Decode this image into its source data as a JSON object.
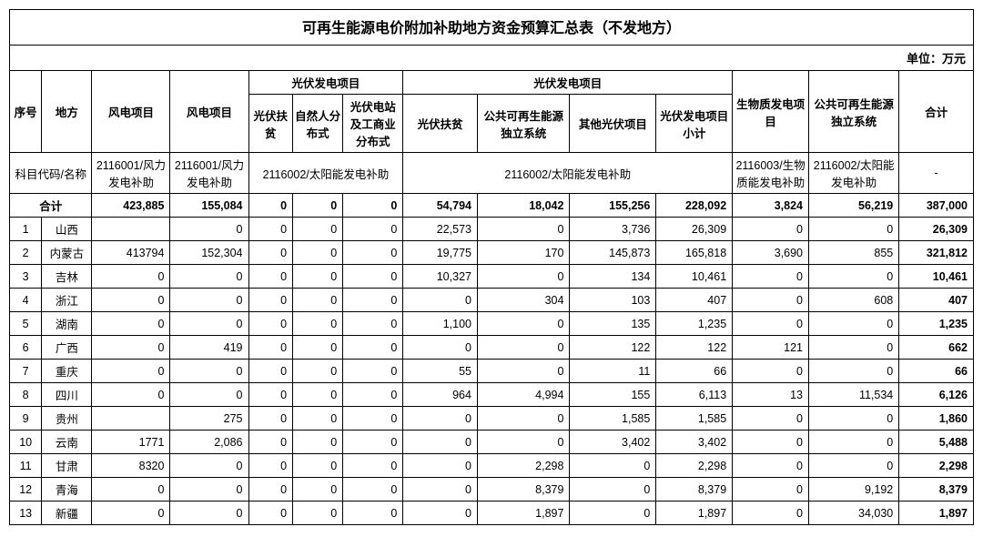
{
  "title": "可再生能源电价附加补助地方资金预算汇总表（不发地方）",
  "unit_label": "单位：万元",
  "header": {
    "idx": "序号",
    "region": "地方",
    "wind1": "风电项目",
    "wind2": "风电项目",
    "pv_group": "光伏发电项目",
    "pv_a": "光伏扶贫",
    "pv_b": "自然人分布式",
    "pv_c": "光伏电站及工商业分布式",
    "solar_group": "光伏发电项目",
    "s_a": "光伏扶贫",
    "s_b": "公共可再生能源独立系统",
    "s_c": "其他光伏项目",
    "s_d": "光伏发电项目小计",
    "bio": "生物质发电项目",
    "pub": "公共可再生能源独立系统",
    "total": "合计",
    "code_label": "科目代码/名称",
    "code_wind": "2116001/风力发电补助",
    "code_solar": "2116002/太阳能发电补助",
    "code_bio": "2116003/生物质能发电补助",
    "code_pub": "2116002/太阳能发电补助",
    "dash": "-"
  },
  "totals": {
    "label": "合计",
    "wind1": "423,885",
    "wind2": "155,084",
    "p1": "0",
    "p2": "0",
    "p3": "0",
    "s1": "54,794",
    "s2": "18,042",
    "s3": "155,256",
    "s4": "228,092",
    "bio": "3,824",
    "pub": "56,219",
    "tot": "387,000"
  },
  "rows": [
    {
      "idx": "1",
      "region": "山西",
      "w1": "",
      "w2": "0",
      "p1": "0",
      "p2": "0",
      "p3": "0",
      "s1": "22,573",
      "s2": "0",
      "s3": "3,736",
      "s4": "26,309",
      "bio": "0",
      "pub": "0",
      "tot": "26,309"
    },
    {
      "idx": "2",
      "region": "内蒙古",
      "w1": "413794",
      "w2": "152,304",
      "p1": "0",
      "p2": "0",
      "p3": "0",
      "s1": "19,775",
      "s2": "170",
      "s3": "145,873",
      "s4": "165,818",
      "bio": "3,690",
      "pub": "855",
      "tot": "321,812"
    },
    {
      "idx": "3",
      "region": "吉林",
      "w1": "0",
      "w2": "0",
      "p1": "0",
      "p2": "0",
      "p3": "0",
      "s1": "10,327",
      "s2": "0",
      "s3": "134",
      "s4": "10,461",
      "bio": "0",
      "pub": "0",
      "tot": "10,461"
    },
    {
      "idx": "4",
      "region": "浙江",
      "w1": "0",
      "w2": "0",
      "p1": "0",
      "p2": "0",
      "p3": "0",
      "s1": "0",
      "s2": "304",
      "s3": "103",
      "s4": "407",
      "bio": "0",
      "pub": "608",
      "tot": "407"
    },
    {
      "idx": "5",
      "region": "湖南",
      "w1": "0",
      "w2": "0",
      "p1": "0",
      "p2": "0",
      "p3": "0",
      "s1": "1,100",
      "s2": "0",
      "s3": "135",
      "s4": "1,235",
      "bio": "0",
      "pub": "0",
      "tot": "1,235"
    },
    {
      "idx": "6",
      "region": "广西",
      "w1": "0",
      "w2": "419",
      "p1": "0",
      "p2": "0",
      "p3": "0",
      "s1": "0",
      "s2": "0",
      "s3": "122",
      "s4": "122",
      "bio": "121",
      "pub": "0",
      "tot": "662"
    },
    {
      "idx": "7",
      "region": "重庆",
      "w1": "0",
      "w2": "0",
      "p1": "0",
      "p2": "0",
      "p3": "0",
      "s1": "55",
      "s2": "0",
      "s3": "11",
      "s4": "66",
      "bio": "0",
      "pub": "0",
      "tot": "66"
    },
    {
      "idx": "8",
      "region": "四川",
      "w1": "0",
      "w2": "0",
      "p1": "0",
      "p2": "0",
      "p3": "0",
      "s1": "964",
      "s2": "4,994",
      "s3": "155",
      "s4": "6,113",
      "bio": "13",
      "pub": "11,534",
      "tot": "6,126"
    },
    {
      "idx": "9",
      "region": "贵州",
      "w1": "",
      "w2": "275",
      "p1": "0",
      "p2": "0",
      "p3": "0",
      "s1": "0",
      "s2": "0",
      "s3": "1,585",
      "s4": "1,585",
      "bio": "0",
      "pub": "0",
      "tot": "1,860"
    },
    {
      "idx": "10",
      "region": "云南",
      "w1": "1771",
      "w2": "2,086",
      "p1": "0",
      "p2": "0",
      "p3": "0",
      "s1": "0",
      "s2": "0",
      "s3": "3,402",
      "s4": "3,402",
      "bio": "0",
      "pub": "0",
      "tot": "5,488"
    },
    {
      "idx": "11",
      "region": "甘肃",
      "w1": "8320",
      "w2": "0",
      "p1": "0",
      "p2": "0",
      "p3": "0",
      "s1": "0",
      "s2": "2,298",
      "s3": "0",
      "s4": "2,298",
      "bio": "0",
      "pub": "0",
      "tot": "2,298"
    },
    {
      "idx": "12",
      "region": "青海",
      "w1": "0",
      "w2": "0",
      "p1": "0",
      "p2": "0",
      "p3": "0",
      "s1": "0",
      "s2": "8,379",
      "s3": "0",
      "s4": "8,379",
      "bio": "0",
      "pub": "9,192",
      "tot": "8,379"
    },
    {
      "idx": "13",
      "region": "新疆",
      "w1": "0",
      "w2": "0",
      "p1": "0",
      "p2": "0",
      "p3": "0",
      "s1": "0",
      "s2": "1,897",
      "s3": "0",
      "s4": "1,897",
      "bio": "0",
      "pub": "34,030",
      "tot": "1,897"
    }
  ]
}
